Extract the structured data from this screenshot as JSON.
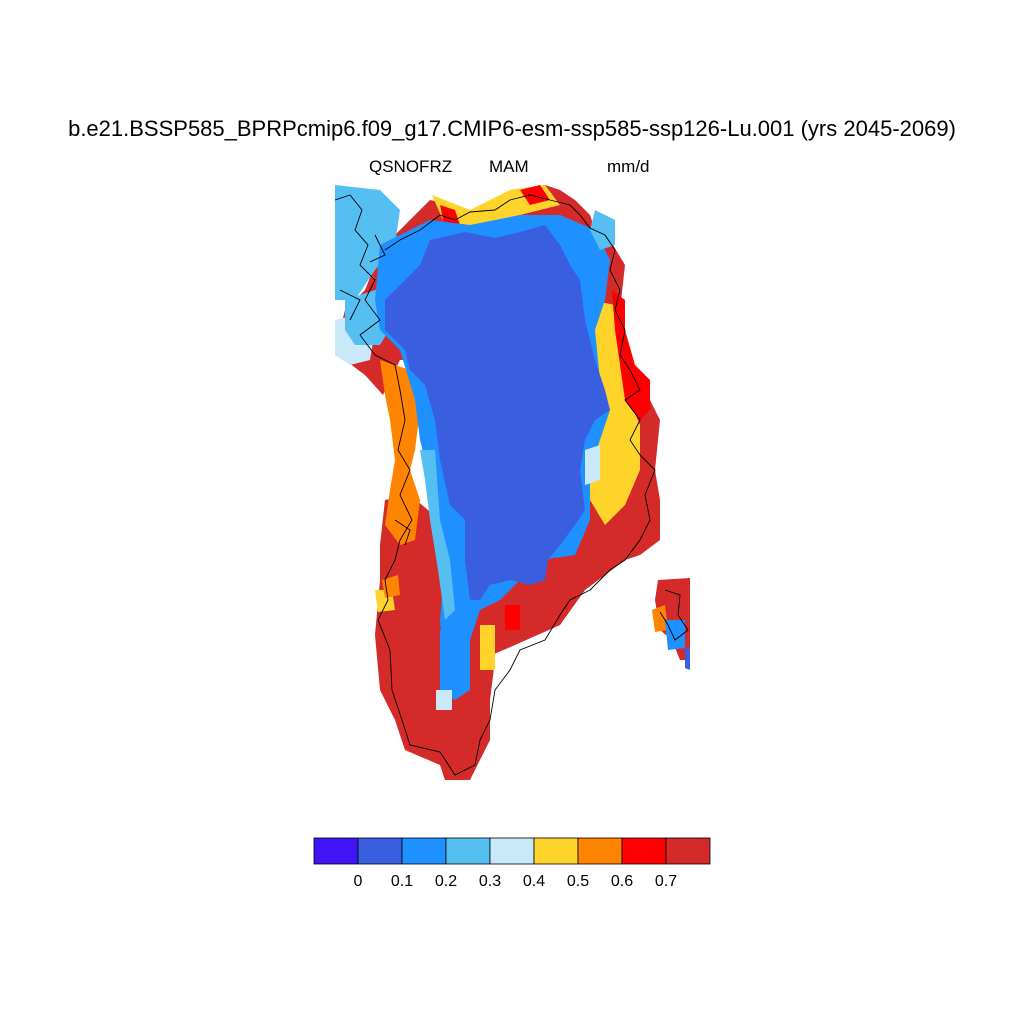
{
  "title": "b.e21.BSSP585_BPRPcmip6.f09_g17.CMIP6-esm-ssp585-ssp126-Lu.001 (yrs 2045-2069)",
  "subtitle_left": "QSNOFRZ",
  "subtitle_center": "MAM",
  "subtitle_right": "mm/d",
  "colorbar": {
    "colors": [
      "#3f14f5",
      "#3a5ee0",
      "#1e90ff",
      "#55bff2",
      "#c9e8f8",
      "#ffd42a",
      "#ff8400",
      "#ff0000",
      "#d42a2a"
    ],
    "labels": [
      "0",
      "0.1",
      "0.2",
      "0.3",
      "0.4",
      "0.5",
      "0.6",
      "0.7"
    ]
  },
  "map": {
    "region": "Greenland",
    "interior_color": "#3a5ee0",
    "coast_color": "#d42a2a"
  }
}
